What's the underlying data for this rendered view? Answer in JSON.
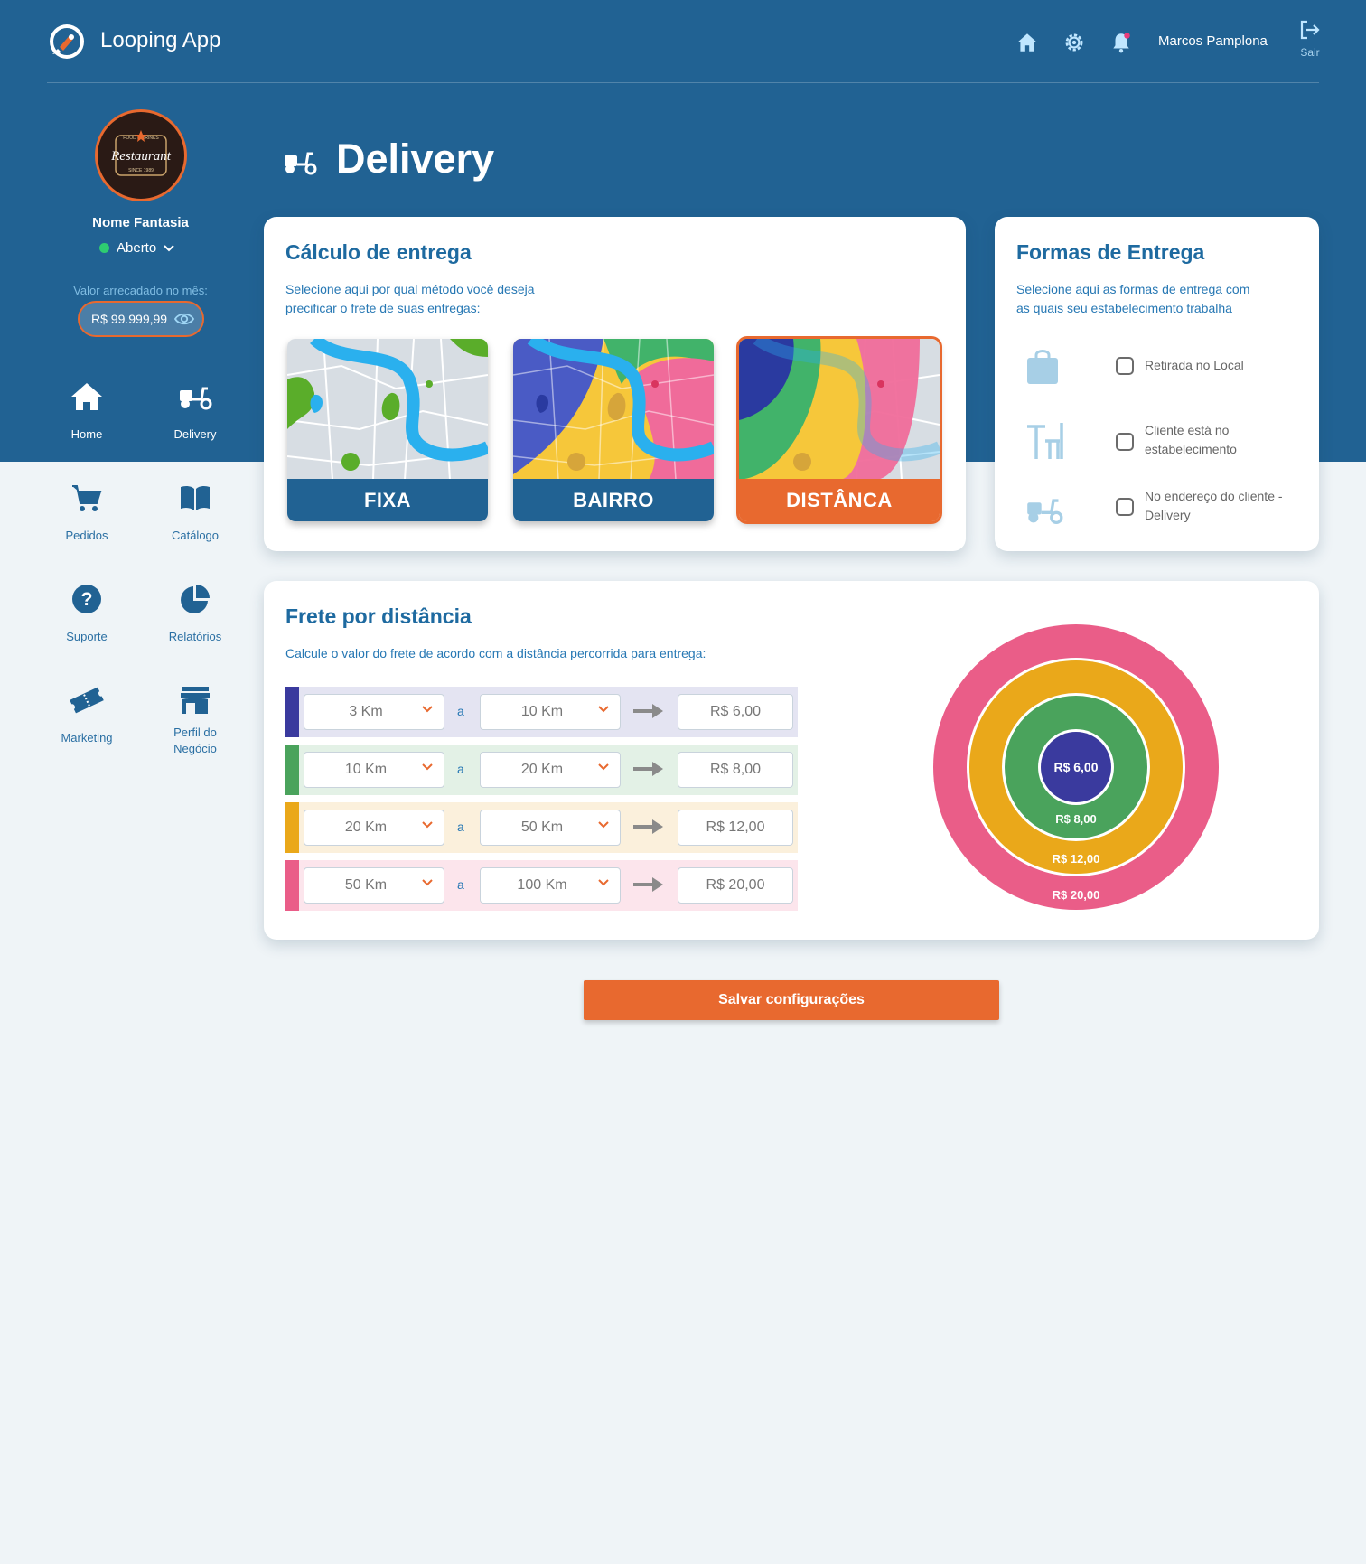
{
  "app": {
    "title": "Looping App"
  },
  "header": {
    "user_name": "Marcos Pamplona",
    "logout_label": "Sair"
  },
  "sidebar": {
    "logo_text": "Restaurant",
    "logo_top_text": "FOOD & DRINKS",
    "logo_bottom_text": "SINCE 1989",
    "store_name": "Nome Fantasia",
    "status": "Aberto",
    "revenue_label": "Valor arrecadado no mês:",
    "revenue_value": "R$ 99.999,99",
    "items": [
      {
        "label": "Home",
        "icon": "home-icon"
      },
      {
        "label": "Delivery",
        "icon": "scooter-icon"
      },
      {
        "label": "Pedidos",
        "icon": "cart-icon"
      },
      {
        "label": "Catálogo",
        "icon": "book-icon"
      },
      {
        "label": "Suporte",
        "icon": "help-icon"
      },
      {
        "label": "Relatórios",
        "icon": "pie-chart-icon"
      },
      {
        "label": "Marketing",
        "icon": "ticket-icon"
      },
      {
        "label": "Perfil do Negócio",
        "icon": "store-icon"
      }
    ]
  },
  "page": {
    "title": "Delivery"
  },
  "calc": {
    "title": "Cálculo de entrega",
    "desc_line1": "Selecione aqui por qual método você deseja",
    "desc_line2": "precificar o frete de suas entregas:",
    "methods": [
      {
        "label": "FIXA",
        "selected": false
      },
      {
        "label": "BAIRRO",
        "selected": false
      },
      {
        "label": "DISTÂNCA",
        "selected": true
      }
    ]
  },
  "forms": {
    "title": "Formas de Entrega",
    "desc_line1": "Selecione aqui as formas de entrega com",
    "desc_line2": "as quais seu estabelecimento trabalha",
    "options": [
      {
        "label": "Retirada no Local",
        "icon": "bag-icon",
        "checked": false
      },
      {
        "label": "Cliente está no estabelecimento",
        "icon": "table-icon",
        "checked": false
      },
      {
        "label": "No endereço do cliente - Delivery",
        "icon": "scooter-icon",
        "checked": false
      }
    ]
  },
  "distance": {
    "title": "Frete por distância",
    "desc": "Calcule o valor do frete de acordo com a distância  percorrida para entrega:",
    "connector": "a",
    "rows": [
      {
        "from": "3 Km",
        "to": "10 Km",
        "price": "R$ 6,00",
        "color": "#3a3a9e",
        "bg": "#e4e4f2"
      },
      {
        "from": "10 Km",
        "to": "20 Km",
        "price": "R$ 8,00",
        "color": "#4aa35c",
        "bg": "#e3f1e6"
      },
      {
        "from": "20 Km",
        "to": "50 Km",
        "price": "R$ 12,00",
        "color": "#eaa81a",
        "bg": "#fbf0dc"
      },
      {
        "from": "50 Km",
        "to": "100 Km",
        "price": "R$ 20,00",
        "color": "#ea5d88",
        "bg": "#fce5ec"
      }
    ]
  },
  "save_label": "Salvar configurações",
  "colors": {
    "primary": "#216293",
    "accent": "#e8692f",
    "background": "#eff4f7"
  }
}
